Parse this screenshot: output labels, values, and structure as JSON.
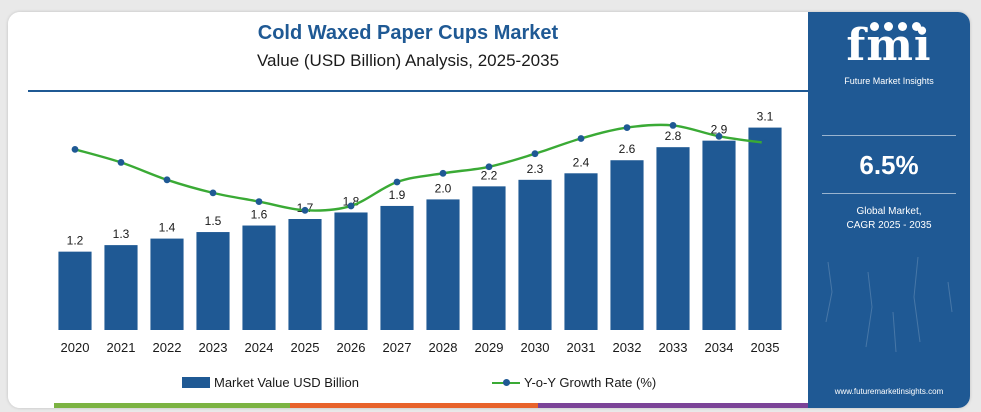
{
  "chart_data": {
    "type": "bar",
    "title": "Cold Waxed Paper Cups Market",
    "subtitle": "Value (USD Billion) Analysis, 2025-2035",
    "categories": [
      "2020",
      "2021",
      "2022",
      "2023",
      "2024",
      "2025",
      "2026",
      "2027",
      "2028",
      "2029",
      "2030",
      "2031",
      "2032",
      "2033",
      "2034",
      "2035"
    ],
    "series": [
      {
        "name": "Market Value USD Billion",
        "kind": "bar",
        "values": [
          1.2,
          1.3,
          1.4,
          1.5,
          1.6,
          1.7,
          1.8,
          1.9,
          2.0,
          2.2,
          2.3,
          2.4,
          2.6,
          2.8,
          2.9,
          3.1
        ],
        "labels": [
          "1.2",
          "1.3",
          "1.4",
          "1.5",
          "1.6",
          "1.7",
          "1.8",
          "1.9",
          "2.0",
          "2.2",
          "2.3",
          "2.4",
          "2.6",
          "2.8",
          "2.9",
          "3.1"
        ]
      },
      {
        "name": "Y-o-Y Growth Rate (%)",
        "kind": "line",
        "values": [
          8.3,
          7.7,
          6.9,
          6.3,
          5.9,
          5.5,
          5.7,
          6.8,
          7.2,
          7.5,
          8.1,
          8.8,
          9.3,
          9.4,
          8.9,
          8.6
        ]
      }
    ],
    "bar_ylim": [
      0,
      3.4
    ],
    "line_ylim": [
      0,
      10.2
    ],
    "xlabel": "",
    "ylabel": "",
    "grid": false,
    "legend": "bottom-center"
  },
  "colors": {
    "bar": "#1f5994",
    "line": "#3aaa35",
    "marker": "#1f5994",
    "panel": "#1f5994",
    "strip": [
      "#7cb342",
      "#e8632b",
      "#7b4397"
    ]
  },
  "sidebar": {
    "logo": "fmi",
    "brand_name": "Future Market Insights",
    "cagr_value": "6.5%",
    "cagr_label_line1": "Global Market,",
    "cagr_label_line2": "CAGR 2025 - 2035",
    "website": "www.futuremarketinsights.com"
  }
}
